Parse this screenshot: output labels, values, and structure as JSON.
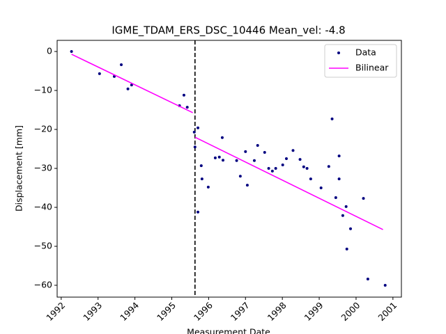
{
  "chart_data": {
    "type": "scatter-line",
    "title": "IGME_TDAM_ERS_DSC_10446    Mean_vel: -4.8",
    "xlabel": "Measurement Date",
    "ylabel": "Displacement [mm]",
    "xlim": [
      1991.89,
      2001.23
    ],
    "ylim": [
      -63.04,
      2.86
    ],
    "xticks": [
      1992,
      1993,
      1994,
      1995,
      1996,
      1997,
      1998,
      1999,
      2000,
      2001
    ],
    "yticks": [
      {
        "value": 0,
        "label": "0"
      },
      {
        "value": -10,
        "label": "−10"
      },
      {
        "value": -20,
        "label": "−20"
      },
      {
        "value": -30,
        "label": "−30"
      },
      {
        "value": -40,
        "label": "−40"
      },
      {
        "value": -50,
        "label": "−50"
      },
      {
        "value": -60,
        "label": "−60"
      }
    ],
    "breakpoint": 1995.63,
    "breakpoint_color": "#000000",
    "legend": "upper right",
    "series": [
      {
        "name": "Data",
        "kind": "points",
        "color": "#000080",
        "x": [
          1992.28,
          1993.04,
          1993.44,
          1993.63,
          1993.81,
          1993.91,
          1995.21,
          1995.33,
          1995.42,
          1995.61,
          1995.63,
          1995.71,
          1995.71,
          1995.8,
          1995.82,
          1995.99,
          1996.18,
          1996.29,
          1996.37,
          1996.39,
          1996.76,
          1996.86,
          1997.0,
          1997.05,
          1997.24,
          1997.33,
          1997.52,
          1997.63,
          1997.73,
          1997.82,
          1998.01,
          1998.11,
          1998.29,
          1998.48,
          1998.58,
          1998.67,
          1998.77,
          1999.05,
          1999.26,
          1999.35,
          1999.45,
          1999.54,
          1999.54,
          1999.64,
          1999.73,
          1999.75,
          1999.85,
          2000.2,
          2000.32,
          2000.79
        ],
        "values": [
          0,
          -5.7,
          -6.4,
          -3.4,
          -9.6,
          -8.6,
          -13.9,
          -11.2,
          -14.3,
          -20.7,
          -24.5,
          -19.6,
          -41.2,
          -29.3,
          -32.7,
          -34.8,
          -27.3,
          -27.1,
          -22.1,
          -27.9,
          -28.0,
          -32.0,
          -25.7,
          -34.3,
          -28.0,
          -24.1,
          -25.9,
          -30.0,
          -30.7,
          -30.0,
          -29.1,
          -27.5,
          -25.4,
          -27.7,
          -29.6,
          -30.0,
          -32.7,
          -35.0,
          -29.5,
          -17.3,
          -37.5,
          -26.8,
          -32.7,
          -42.1,
          -39.8,
          -50.7,
          -45.5,
          -37.7,
          -58.4,
          -60.0
        ]
      },
      {
        "name": "Bilinear",
        "kind": "line",
        "color": "#ff00ff",
        "x": [
          1992.28,
          1995.57,
          null,
          1995.63,
          2000.73
        ],
        "values": [
          -0.7,
          -15.7,
          null,
          -22.0,
          -45.7
        ]
      }
    ]
  }
}
